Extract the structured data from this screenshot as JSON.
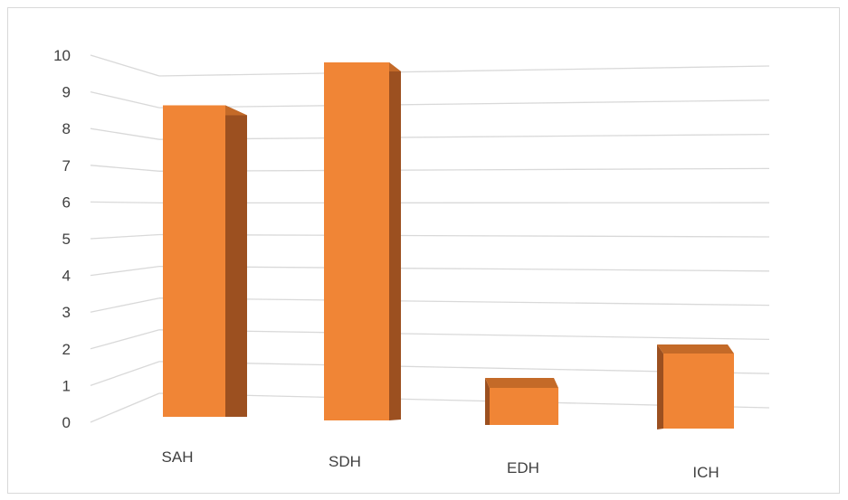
{
  "chart_data": {
    "type": "bar",
    "style": "3d-perspective",
    "categories": [
      "SAH",
      "SDH",
      "EDH",
      "ICH"
    ],
    "values": [
      8.7,
      9.9,
      1.0,
      2.0
    ],
    "yticks": [
      "0",
      "1",
      "2",
      "3",
      "4",
      "5",
      "6",
      "7",
      "8",
      "9",
      "10"
    ],
    "ylim": [
      0,
      10
    ],
    "grid": true,
    "legend": "none",
    "colors": {
      "bar_front": "#f08536",
      "bar_side": "#9c5020",
      "bar_top": "#c46a28",
      "grid": "#d9d9d9",
      "text": "#404040"
    }
  }
}
